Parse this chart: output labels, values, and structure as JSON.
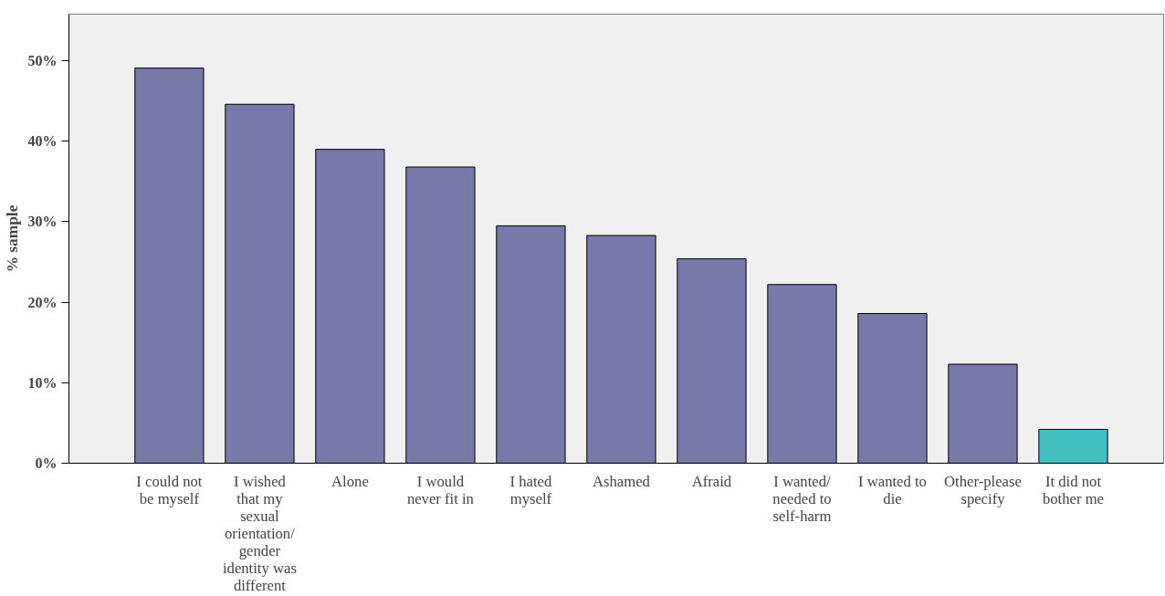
{
  "chart_data": {
    "type": "bar",
    "ylabel": "% sample",
    "categories": [
      "I could not be myself",
      "I wished that my sexual orientation/ gender identity was different",
      "Alone",
      "I would never fit in",
      "I hated myself",
      "Ashamed",
      "Afraid",
      "I wanted/ needed to self-harm",
      "I wanted to die",
      "Other-please specify",
      "It did not bother me"
    ],
    "values": [
      49.1,
      44.6,
      39.0,
      36.8,
      29.5,
      28.3,
      25.4,
      22.2,
      18.6,
      12.3,
      4.2
    ],
    "colors": [
      "#7879a8",
      "#7879a8",
      "#7879a8",
      "#7879a8",
      "#7879a8",
      "#7879a8",
      "#7879a8",
      "#7879a8",
      "#7879a8",
      "#7879a8",
      "#40c0c0"
    ],
    "ylim": [
      0,
      55.8
    ],
    "yticks": [
      {
        "value": 0,
        "label": "0%"
      },
      {
        "value": 10,
        "label": "10%"
      },
      {
        "value": 20,
        "label": "20%"
      },
      {
        "value": 30,
        "label": "30%"
      },
      {
        "value": 40,
        "label": "40%"
      },
      {
        "value": 50,
        "label": "50%"
      }
    ],
    "grid": false
  }
}
